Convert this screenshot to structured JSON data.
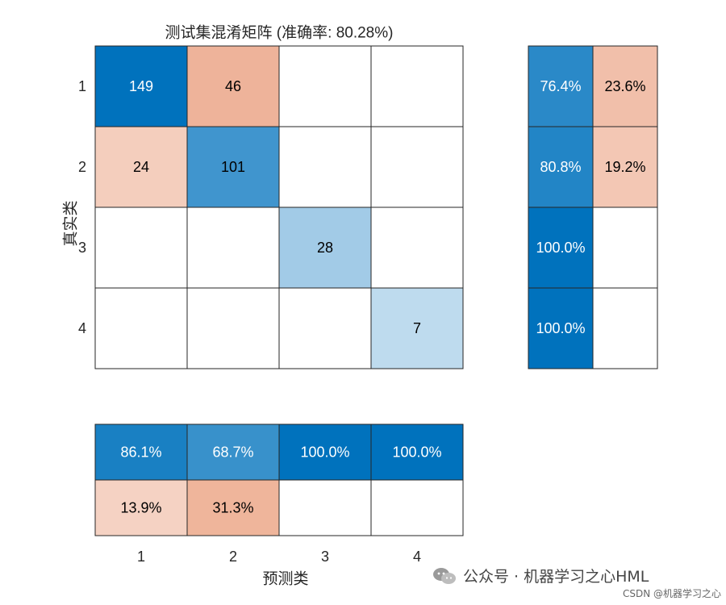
{
  "chart_data": {
    "type": "heatmap",
    "title": "测试集混淆矩阵 (准确率: 80.28%)",
    "xlabel": "预测类",
    "ylabel": "真实类",
    "classes": [
      "1",
      "2",
      "3",
      "4"
    ],
    "matrix": [
      [
        149,
        46,
        0,
        0
      ],
      [
        24,
        101,
        0,
        0
      ],
      [
        0,
        0,
        28,
        0
      ],
      [
        0,
        0,
        0,
        7
      ]
    ],
    "row_summary": [
      [
        "76.4%",
        "23.6%"
      ],
      [
        "80.8%",
        "19.2%"
      ],
      [
        "100.0%",
        ""
      ],
      [
        "100.0%",
        ""
      ]
    ],
    "row_summary_values": [
      [
        76.4,
        23.6
      ],
      [
        80.8,
        19.2
      ],
      [
        100.0,
        0
      ],
      [
        100.0,
        0
      ]
    ],
    "column_summary": [
      [
        "86.1%",
        "68.7%",
        "100.0%",
        "100.0%"
      ],
      [
        "13.9%",
        "31.3%",
        "",
        ""
      ]
    ],
    "column_summary_values": [
      [
        86.1,
        68.7,
        100.0,
        100.0
      ],
      [
        13.9,
        31.3,
        0,
        0
      ]
    ],
    "colors": {
      "correct": "#0072bd",
      "incorrect": "#d95319",
      "empty": "#ffffff",
      "grid": "#262626",
      "text_dark": "#000000",
      "text_light": "#ffffff"
    }
  },
  "watermark": {
    "main": "公众号 · 机器学习之心HML",
    "sub": "CSDN @机器学习之心"
  }
}
